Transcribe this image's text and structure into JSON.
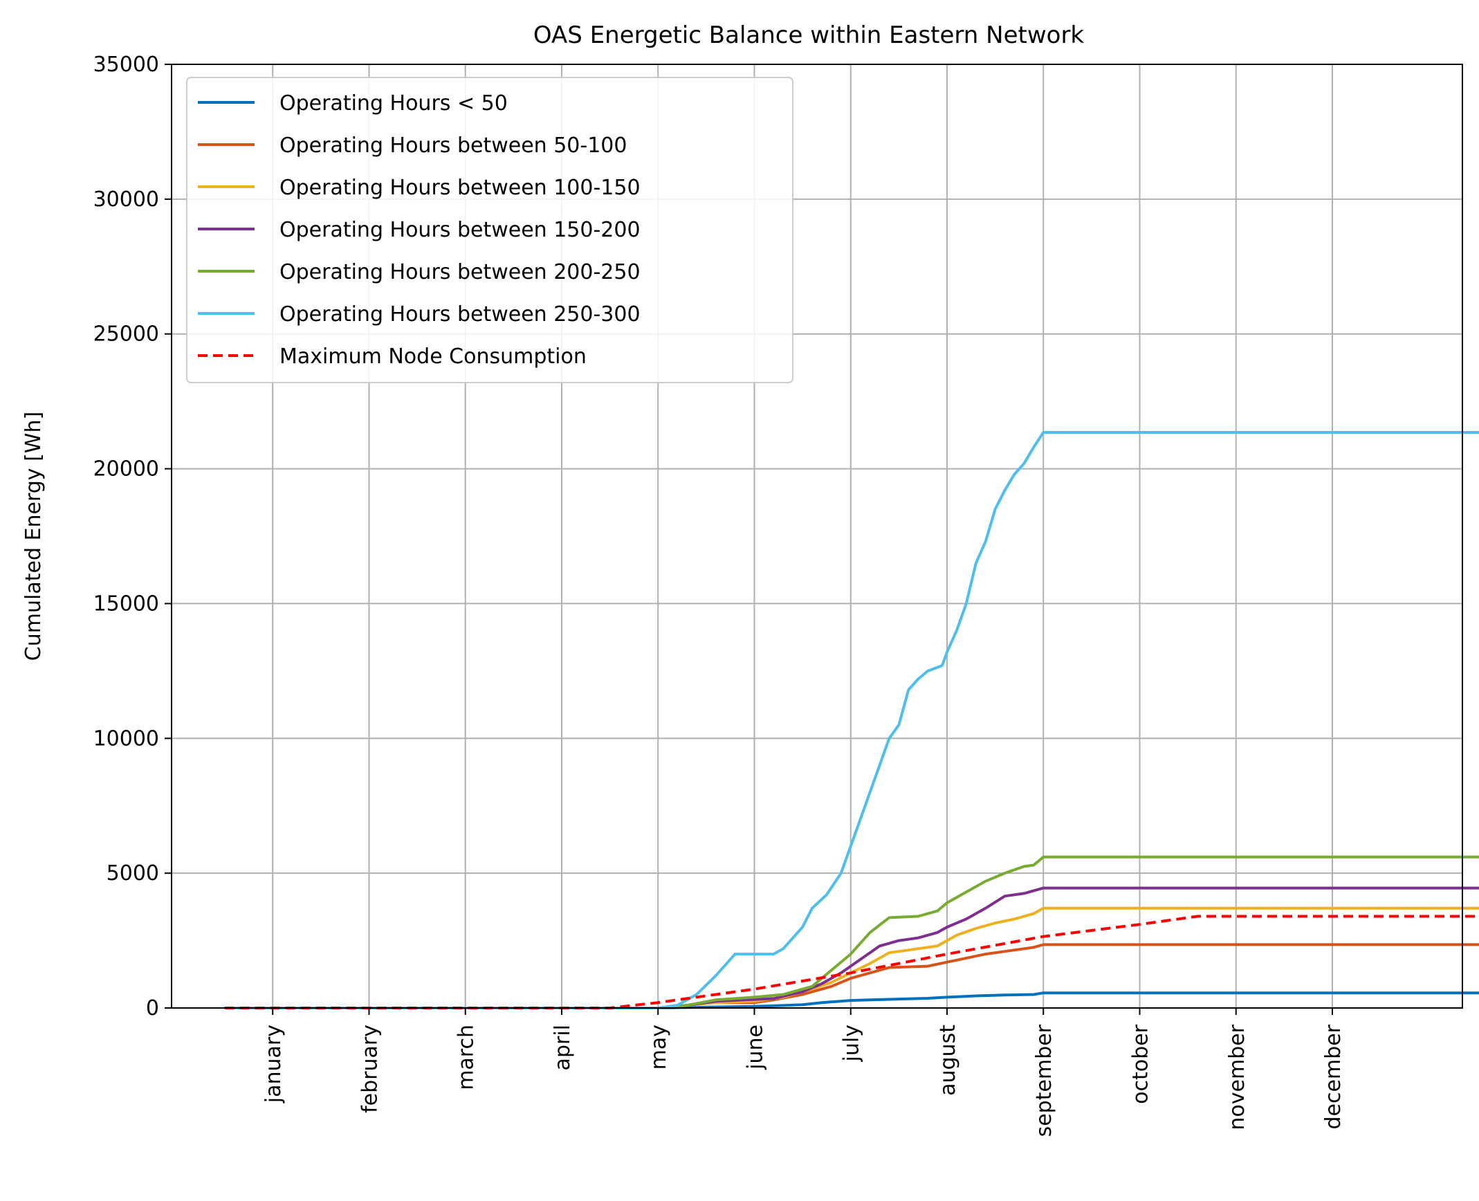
{
  "chart_data": {
    "type": "line",
    "title": "OAS Energetic Balance within Eastern Network",
    "xlabel": "",
    "ylabel": "Cumulated Energy [Wh]",
    "ylim": [
      0,
      35000
    ],
    "yticks": [
      0,
      5000,
      10000,
      15000,
      20000,
      25000,
      30000,
      35000
    ],
    "xlim": [
      -1.05,
      12.35
    ],
    "month_ticks": [
      "january",
      "february",
      "march",
      "april",
      "may",
      "june",
      "july",
      "august",
      "september",
      "october",
      "november",
      "december"
    ],
    "grid": true,
    "legend_position": "upper-left",
    "series": [
      {
        "name": "Operating Hours < 50",
        "color": "#0072BD",
        "dashed": false,
        "points": [
          [
            -0.5,
            0
          ],
          [
            4.0,
            0
          ],
          [
            4.5,
            30
          ],
          [
            5.0,
            60
          ],
          [
            5.5,
            120
          ],
          [
            5.7,
            200
          ],
          [
            6.0,
            280
          ],
          [
            6.4,
            320
          ],
          [
            6.8,
            360
          ],
          [
            7.0,
            400
          ],
          [
            7.3,
            450
          ],
          [
            7.6,
            480
          ],
          [
            7.9,
            500
          ],
          [
            8.0,
            560
          ],
          [
            12.7,
            560
          ]
        ]
      },
      {
        "name": "Operating Hours between 50-100",
        "color": "#D95319",
        "dashed": false,
        "points": [
          [
            -0.5,
            0
          ],
          [
            4.0,
            0
          ],
          [
            4.2,
            50
          ],
          [
            4.4,
            150
          ],
          [
            4.6,
            200
          ],
          [
            5.0,
            200
          ],
          [
            5.2,
            300
          ],
          [
            5.5,
            500
          ],
          [
            5.8,
            800
          ],
          [
            6.0,
            1100
          ],
          [
            6.2,
            1300
          ],
          [
            6.4,
            1500
          ],
          [
            6.8,
            1550
          ],
          [
            7.0,
            1700
          ],
          [
            7.2,
            1850
          ],
          [
            7.4,
            2000
          ],
          [
            7.6,
            2100
          ],
          [
            7.8,
            2200
          ],
          [
            7.9,
            2250
          ],
          [
            8.0,
            2350
          ],
          [
            12.7,
            2350
          ]
        ]
      },
      {
        "name": "Operating Hours between 100-150",
        "color": "#EDB120",
        "dashed": false,
        "points": [
          [
            -0.5,
            0
          ],
          [
            4.0,
            0
          ],
          [
            4.3,
            100
          ],
          [
            4.6,
            200
          ],
          [
            5.0,
            250
          ],
          [
            5.3,
            400
          ],
          [
            5.6,
            700
          ],
          [
            5.8,
            950
          ],
          [
            6.0,
            1300
          ],
          [
            6.2,
            1650
          ],
          [
            6.4,
            2050
          ],
          [
            6.7,
            2200
          ],
          [
            6.9,
            2300
          ],
          [
            7.1,
            2700
          ],
          [
            7.3,
            2950
          ],
          [
            7.5,
            3150
          ],
          [
            7.7,
            3300
          ],
          [
            7.9,
            3500
          ],
          [
            8.0,
            3700
          ],
          [
            12.7,
            3700
          ]
        ]
      },
      {
        "name": "Operating Hours between 150-200",
        "color": "#7E2F8E",
        "dashed": false,
        "points": [
          [
            -0.5,
            0
          ],
          [
            4.0,
            0
          ],
          [
            4.3,
            100
          ],
          [
            4.6,
            250
          ],
          [
            4.9,
            300
          ],
          [
            5.2,
            350
          ],
          [
            5.5,
            600
          ],
          [
            5.7,
            900
          ],
          [
            5.9,
            1300
          ],
          [
            6.1,
            1800
          ],
          [
            6.3,
            2300
          ],
          [
            6.5,
            2500
          ],
          [
            6.7,
            2600
          ],
          [
            6.9,
            2800
          ],
          [
            7.0,
            3000
          ],
          [
            7.2,
            3300
          ],
          [
            7.4,
            3700
          ],
          [
            7.6,
            4150
          ],
          [
            7.8,
            4250
          ],
          [
            8.0,
            4450
          ],
          [
            12.7,
            4450
          ]
        ]
      },
      {
        "name": "Operating Hours between 200-250",
        "color": "#77AC30",
        "dashed": false,
        "points": [
          [
            -0.5,
            0
          ],
          [
            4.0,
            0
          ],
          [
            4.3,
            100
          ],
          [
            4.6,
            300
          ],
          [
            5.0,
            400
          ],
          [
            5.3,
            500
          ],
          [
            5.6,
            800
          ],
          [
            5.8,
            1400
          ],
          [
            6.0,
            2000
          ],
          [
            6.2,
            2800
          ],
          [
            6.4,
            3350
          ],
          [
            6.7,
            3400
          ],
          [
            6.9,
            3600
          ],
          [
            7.0,
            3900
          ],
          [
            7.2,
            4300
          ],
          [
            7.4,
            4700
          ],
          [
            7.6,
            5000
          ],
          [
            7.8,
            5250
          ],
          [
            7.9,
            5300
          ],
          [
            8.0,
            5600
          ],
          [
            12.7,
            5600
          ]
        ]
      },
      {
        "name": "Operating Hours between 250-300",
        "color": "#4DBEEE",
        "dashed": false,
        "points": [
          [
            -0.5,
            0
          ],
          [
            4.0,
            0
          ],
          [
            4.2,
            100
          ],
          [
            4.4,
            500
          ],
          [
            4.6,
            1200
          ],
          [
            4.8,
            2000
          ],
          [
            5.2,
            2000
          ],
          [
            5.3,
            2200
          ],
          [
            5.5,
            3000
          ],
          [
            5.6,
            3700
          ],
          [
            5.75,
            4200
          ],
          [
            5.9,
            5000
          ],
          [
            6.0,
            6000
          ],
          [
            6.1,
            7000
          ],
          [
            6.2,
            8000
          ],
          [
            6.3,
            9000
          ],
          [
            6.4,
            10000
          ],
          [
            6.5,
            10500
          ],
          [
            6.6,
            11800
          ],
          [
            6.7,
            12200
          ],
          [
            6.8,
            12500
          ],
          [
            6.95,
            12700
          ],
          [
            7.0,
            13200
          ],
          [
            7.1,
            14000
          ],
          [
            7.2,
            15000
          ],
          [
            7.3,
            16500
          ],
          [
            7.4,
            17300
          ],
          [
            7.5,
            18500
          ],
          [
            7.6,
            19200
          ],
          [
            7.7,
            19800
          ],
          [
            7.8,
            20200
          ],
          [
            7.9,
            20800
          ],
          [
            8.0,
            21350
          ],
          [
            12.7,
            21350
          ]
        ]
      },
      {
        "name": "Maximum Node Consumption",
        "color": "#FF0000",
        "dashed": true,
        "points": [
          [
            -0.5,
            0
          ],
          [
            3.5,
            0
          ],
          [
            4.0,
            200
          ],
          [
            5.0,
            700
          ],
          [
            6.0,
            1300
          ],
          [
            7.0,
            2000
          ],
          [
            8.0,
            2650
          ],
          [
            9.0,
            3100
          ],
          [
            9.6,
            3400
          ],
          [
            12.7,
            3400
          ]
        ]
      }
    ]
  }
}
